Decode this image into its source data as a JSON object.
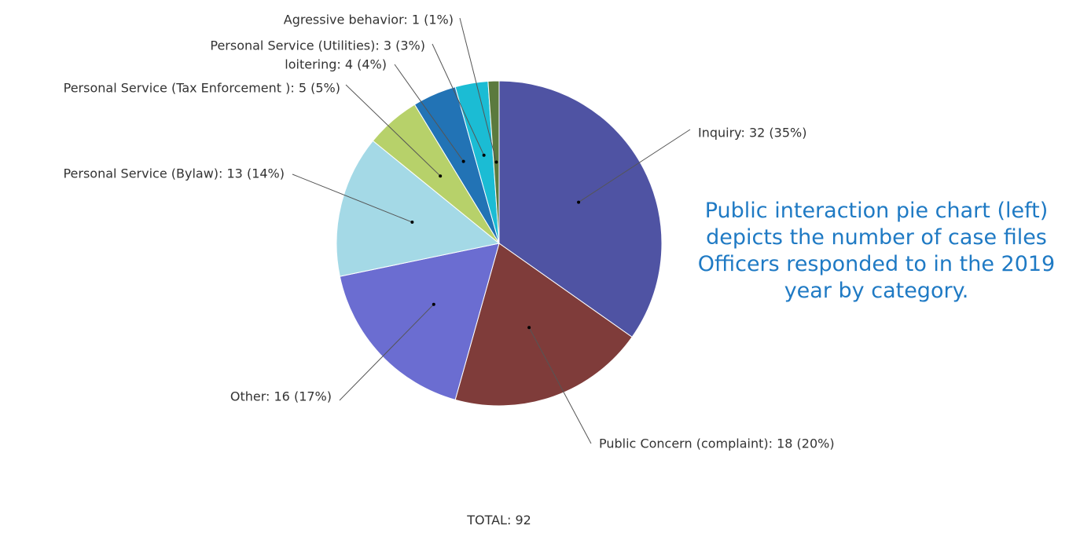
{
  "caption": "Public interaction pie chart (left) depicts the number of case files Officers responded to in the 2019 year by category.",
  "total_label": "TOTAL: 92",
  "chart_data": {
    "type": "pie",
    "total": 92,
    "slices": [
      {
        "name": "Inquiry",
        "value": 32,
        "percent": 35,
        "label": "Inquiry: 32 (35%)",
        "color": "#4f53a3"
      },
      {
        "name": "Public Concern (complaint)",
        "value": 18,
        "percent": 20,
        "label": "Public Concern (complaint): 18 (20%)",
        "color": "#7f3c3a"
      },
      {
        "name": "Other",
        "value": 16,
        "percent": 17,
        "label": "Other: 16 (17%)",
        "color": "#6b6dd1"
      },
      {
        "name": "Personal Service (Bylaw)",
        "value": 13,
        "percent": 14,
        "label": "Personal Service (Bylaw): 13 (14%)",
        "color": "#a4d9e6"
      },
      {
        "name": "Personal Service (Tax Enforcement )",
        "value": 5,
        "percent": 5,
        "label": "Personal Service (Tax Enforcement ): 5 (5%)",
        "color": "#b7d16a"
      },
      {
        "name": "loitering",
        "value": 4,
        "percent": 4,
        "label": "loitering: 4 (4%)",
        "color": "#2273b5"
      },
      {
        "name": "Personal Service (Utilities)",
        "value": 3,
        "percent": 3,
        "label": "Personal Service (Utilities): 3 (3%)",
        "color": "#1bbcd4"
      },
      {
        "name": "Agressive behavior",
        "value": 1,
        "percent": 1,
        "label": "Agressive behavior: 1 (1%)",
        "color": "#5b7a3e"
      }
    ]
  }
}
